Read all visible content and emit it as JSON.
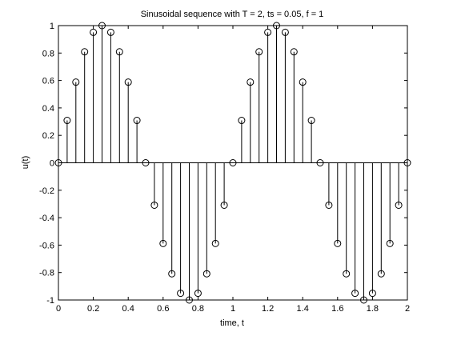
{
  "chart_data": {
    "type": "stem",
    "title": "Sinusoidal sequence with T = 2, ts = 0.05, f = 1",
    "xlabel": "time, t",
    "ylabel": "u(t)",
    "xlim": [
      0,
      2
    ],
    "ylim": [
      -1,
      1
    ],
    "grid": false,
    "x_ticks": [
      0,
      0.2,
      0.4,
      0.6,
      0.8,
      1,
      1.2,
      1.4,
      1.6,
      1.8,
      2
    ],
    "x_tick_labels": [
      "0",
      "0.2",
      "0.4",
      "0.6",
      "0.8",
      "1",
      "1.2",
      "1.4",
      "1.6",
      "1.8",
      "2"
    ],
    "y_ticks": [
      -1,
      -0.8,
      -0.6,
      -0.4,
      -0.2,
      0,
      0.2,
      0.4,
      0.6,
      0.8,
      1
    ],
    "y_tick_labels": [
      "-1",
      "-0.8",
      "-0.6",
      "-0.4",
      "-0.2",
      "0",
      "0.2",
      "0.4",
      "0.6",
      "0.8",
      "1"
    ],
    "x": [
      0,
      0.05,
      0.1,
      0.15,
      0.2,
      0.25,
      0.3,
      0.35,
      0.4,
      0.45,
      0.5,
      0.55,
      0.6,
      0.65,
      0.7,
      0.75,
      0.8,
      0.85,
      0.9,
      0.95,
      1,
      1.05,
      1.1,
      1.15,
      1.2,
      1.25,
      1.3,
      1.35,
      1.4,
      1.45,
      1.5,
      1.55,
      1.6,
      1.65,
      1.7,
      1.75,
      1.8,
      1.85,
      1.9,
      1.95,
      2
    ],
    "values": [
      0,
      0.309,
      0.588,
      0.809,
      0.951,
      1,
      0.951,
      0.809,
      0.588,
      0.309,
      0,
      -0.309,
      -0.588,
      -0.809,
      -0.951,
      -1,
      -0.951,
      -0.809,
      -0.588,
      -0.309,
      0,
      0.309,
      0.588,
      0.809,
      0.951,
      1,
      0.951,
      0.809,
      0.588,
      0.309,
      0,
      -0.309,
      -0.588,
      -0.809,
      -0.951,
      -1,
      -0.951,
      -0.809,
      -0.588,
      -0.309,
      0
    ],
    "marker": "circle-open",
    "color": "#000000"
  }
}
